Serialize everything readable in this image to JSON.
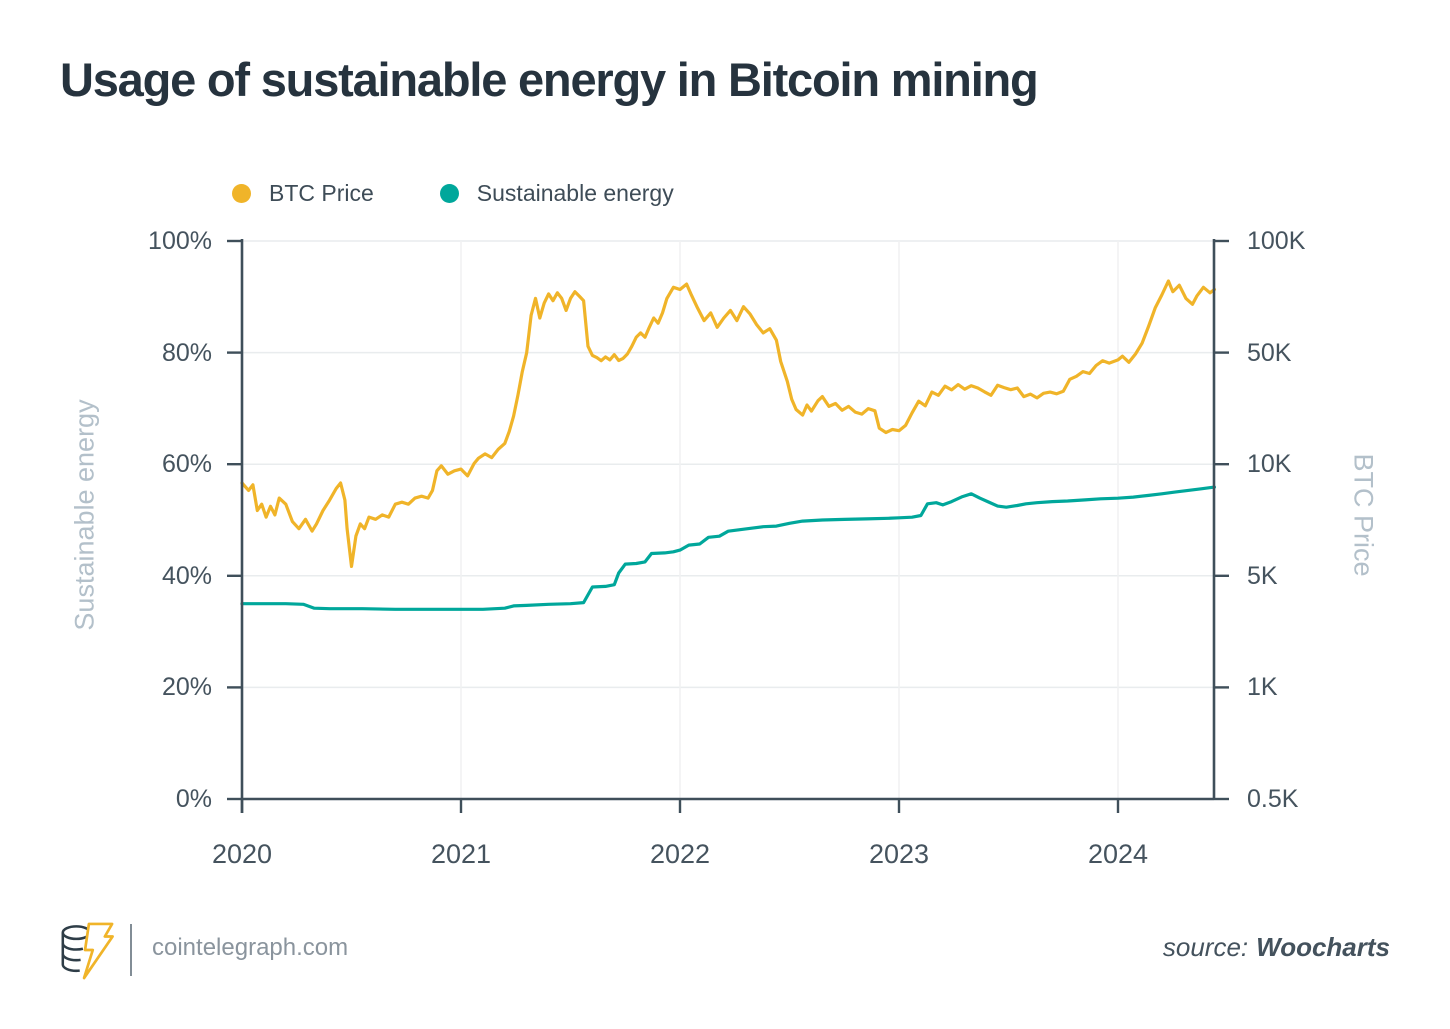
{
  "page": {
    "title": "Usage of sustainable energy in Bitcoin mining"
  },
  "legend": {
    "items": [
      {
        "label": "BTC Price",
        "color": "#F0B429"
      },
      {
        "label": "Sustainable energy",
        "color": "#00A79B"
      }
    ]
  },
  "chart_data": {
    "type": "line",
    "title": "Usage of sustainable energy in Bitcoin mining",
    "legend_position": "top",
    "grid": true,
    "x_axis": {
      "tick_labels": [
        "2020",
        "2021",
        "2022",
        "2023",
        "2024"
      ],
      "tick_years": [
        2020,
        2021,
        2022,
        2023,
        2024
      ],
      "range": [
        2020,
        2024.44
      ]
    },
    "left_y_axis": {
      "label": "Sustainable energy",
      "unit": "%",
      "tick_labels": [
        "0%",
        "20%",
        "40%",
        "60%",
        "80%",
        "100%"
      ],
      "tick_values": [
        0,
        20,
        40,
        60,
        80,
        100
      ],
      "range": [
        0,
        100
      ],
      "scale": "linear"
    },
    "right_y_axis": {
      "label": "BTC Price",
      "unit": "K USD",
      "tick_labels": [
        "0.5K",
        "1K",
        "5K",
        "10K",
        "50K",
        "100K"
      ],
      "tick_values": [
        0.5,
        1,
        5,
        10,
        50,
        100
      ],
      "range": [
        0.5,
        100
      ],
      "scale": "log-segmented"
    },
    "series": [
      {
        "name": "BTC Price",
        "axis": "right",
        "unit": "K USD",
        "color": "#F0B429",
        "points": [
          [
            2020.0,
            8.9
          ],
          [
            2020.03,
            8.5
          ],
          [
            2020.05,
            8.8
          ],
          [
            2020.07,
            7.5
          ],
          [
            2020.09,
            7.8
          ],
          [
            2020.11,
            7.2
          ],
          [
            2020.13,
            7.7
          ],
          [
            2020.15,
            7.3
          ],
          [
            2020.17,
            8.1
          ],
          [
            2020.2,
            7.8
          ],
          [
            2020.23,
            7.0
          ],
          [
            2020.26,
            6.7
          ],
          [
            2020.29,
            7.1
          ],
          [
            2020.32,
            6.6
          ],
          [
            2020.34,
            6.9
          ],
          [
            2020.37,
            7.5
          ],
          [
            2020.4,
            8.0
          ],
          [
            2020.43,
            8.6
          ],
          [
            2020.45,
            8.9
          ],
          [
            2020.47,
            8.0
          ],
          [
            2020.48,
            6.7
          ],
          [
            2020.5,
            5.3
          ],
          [
            2020.52,
            6.4
          ],
          [
            2020.54,
            6.9
          ],
          [
            2020.56,
            6.7
          ],
          [
            2020.58,
            7.2
          ],
          [
            2020.61,
            7.1
          ],
          [
            2020.64,
            7.3
          ],
          [
            2020.67,
            7.2
          ],
          [
            2020.7,
            7.8
          ],
          [
            2020.73,
            7.9
          ],
          [
            2020.76,
            7.8
          ],
          [
            2020.79,
            8.1
          ],
          [
            2020.82,
            8.2
          ],
          [
            2020.85,
            8.1
          ],
          [
            2020.87,
            8.5
          ],
          [
            2020.89,
            9.6
          ],
          [
            2020.91,
            9.9
          ],
          [
            2020.94,
            9.4
          ],
          [
            2020.97,
            9.6
          ],
          [
            2021.0,
            9.7
          ],
          [
            2021.03,
            9.3
          ],
          [
            2021.06,
            10.1
          ],
          [
            2021.08,
            10.9
          ],
          [
            2021.11,
            11.6
          ],
          [
            2021.14,
            11.0
          ],
          [
            2021.17,
            12.4
          ],
          [
            2021.2,
            13.5
          ],
          [
            2021.22,
            16.0
          ],
          [
            2021.24,
            20.0
          ],
          [
            2021.26,
            27.0
          ],
          [
            2021.28,
            38.0
          ],
          [
            2021.3,
            50.0
          ],
          [
            2021.32,
            63.0
          ],
          [
            2021.34,
            70.0
          ],
          [
            2021.36,
            62.0
          ],
          [
            2021.38,
            68.0
          ],
          [
            2021.4,
            72.0
          ],
          [
            2021.42,
            69.0
          ],
          [
            2021.44,
            72.5
          ],
          [
            2021.46,
            70.0
          ],
          [
            2021.48,
            65.0
          ],
          [
            2021.5,
            70.0
          ],
          [
            2021.52,
            73.0
          ],
          [
            2021.54,
            71.0
          ],
          [
            2021.56,
            69.0
          ],
          [
            2021.58,
            52.0
          ],
          [
            2021.6,
            48.0
          ],
          [
            2021.62,
            46.5
          ],
          [
            2021.64,
            44.5
          ],
          [
            2021.66,
            47.0
          ],
          [
            2021.68,
            45.0
          ],
          [
            2021.7,
            48.5
          ],
          [
            2021.72,
            44.6
          ],
          [
            2021.74,
            46.0
          ],
          [
            2021.76,
            49.0
          ],
          [
            2021.78,
            52.0
          ],
          [
            2021.8,
            55.0
          ],
          [
            2021.82,
            56.5
          ],
          [
            2021.84,
            55.0
          ],
          [
            2021.86,
            58.5
          ],
          [
            2021.88,
            62.0
          ],
          [
            2021.9,
            60.0
          ],
          [
            2021.92,
            64.0
          ],
          [
            2021.94,
            70.0
          ],
          [
            2021.97,
            75.0
          ],
          [
            2022.0,
            74.0
          ],
          [
            2022.03,
            76.5
          ],
          [
            2022.05,
            72.0
          ],
          [
            2022.08,
            66.0
          ],
          [
            2022.11,
            61.0
          ],
          [
            2022.14,
            64.0
          ],
          [
            2022.17,
            58.5
          ],
          [
            2022.2,
            62.0
          ],
          [
            2022.23,
            65.0
          ],
          [
            2022.26,
            61.0
          ],
          [
            2022.29,
            66.5
          ],
          [
            2022.32,
            63.5
          ],
          [
            2022.35,
            59.5
          ],
          [
            2022.38,
            56.5
          ],
          [
            2022.41,
            58.0
          ],
          [
            2022.44,
            54.0
          ],
          [
            2022.46,
            44.0
          ],
          [
            2022.49,
            33.0
          ],
          [
            2022.51,
            25.5
          ],
          [
            2022.53,
            22.0
          ],
          [
            2022.56,
            20.3
          ],
          [
            2022.58,
            23.5
          ],
          [
            2022.6,
            21.5
          ],
          [
            2022.63,
            25.0
          ],
          [
            2022.65,
            26.5
          ],
          [
            2022.68,
            23.0
          ],
          [
            2022.71,
            24.0
          ],
          [
            2022.74,
            21.8
          ],
          [
            2022.77,
            23.0
          ],
          [
            2022.8,
            21.2
          ],
          [
            2022.83,
            20.6
          ],
          [
            2022.86,
            22.3
          ],
          [
            2022.89,
            21.6
          ],
          [
            2022.91,
            16.8
          ],
          [
            2022.94,
            15.8
          ],
          [
            2022.97,
            16.5
          ],
          [
            2023.0,
            16.2
          ],
          [
            2023.03,
            17.5
          ],
          [
            2023.06,
            21.0
          ],
          [
            2023.09,
            24.8
          ],
          [
            2023.12,
            23.2
          ],
          [
            2023.15,
            28.3
          ],
          [
            2023.18,
            27.0
          ],
          [
            2023.21,
            30.8
          ],
          [
            2023.24,
            29.2
          ],
          [
            2023.27,
            31.5
          ],
          [
            2023.3,
            29.5
          ],
          [
            2023.33,
            31.0
          ],
          [
            2023.36,
            30.0
          ],
          [
            2023.39,
            28.4
          ],
          [
            2023.42,
            27.0
          ],
          [
            2023.45,
            31.2
          ],
          [
            2023.48,
            30.2
          ],
          [
            2023.51,
            29.3
          ],
          [
            2023.54,
            30.0
          ],
          [
            2023.57,
            26.5
          ],
          [
            2023.6,
            27.5
          ],
          [
            2023.63,
            26.0
          ],
          [
            2023.66,
            27.8
          ],
          [
            2023.69,
            28.3
          ],
          [
            2023.72,
            27.6
          ],
          [
            2023.75,
            28.6
          ],
          [
            2023.78,
            34.0
          ],
          [
            2023.81,
            35.5
          ],
          [
            2023.84,
            38.0
          ],
          [
            2023.87,
            37.0
          ],
          [
            2023.9,
            41.5
          ],
          [
            2023.93,
            44.5
          ],
          [
            2023.96,
            43.0
          ],
          [
            2024.0,
            45.0
          ],
          [
            2024.02,
            47.5
          ],
          [
            2024.05,
            43.5
          ],
          [
            2024.08,
            49.0
          ],
          [
            2024.11,
            53.0
          ],
          [
            2024.14,
            59.0
          ],
          [
            2024.17,
            66.0
          ],
          [
            2024.2,
            71.5
          ],
          [
            2024.23,
            78.0
          ],
          [
            2024.25,
            73.0
          ],
          [
            2024.28,
            76.0
          ],
          [
            2024.31,
            70.0
          ],
          [
            2024.34,
            67.5
          ],
          [
            2024.36,
            71.0
          ],
          [
            2024.39,
            75.0
          ],
          [
            2024.42,
            72.5
          ],
          [
            2024.44,
            74.0
          ]
        ]
      },
      {
        "name": "Sustainable energy",
        "axis": "left",
        "unit": "%",
        "color": "#00A79B",
        "points": [
          [
            2020.0,
            35.0
          ],
          [
            2020.1,
            35.0
          ],
          [
            2020.2,
            35.0
          ],
          [
            2020.28,
            34.9
          ],
          [
            2020.33,
            34.2
          ],
          [
            2020.4,
            34.1
          ],
          [
            2020.55,
            34.1
          ],
          [
            2020.7,
            34.0
          ],
          [
            2020.85,
            34.0
          ],
          [
            2021.0,
            34.0
          ],
          [
            2021.1,
            34.0
          ],
          [
            2021.2,
            34.2
          ],
          [
            2021.24,
            34.6
          ],
          [
            2021.3,
            34.7
          ],
          [
            2021.4,
            34.9
          ],
          [
            2021.5,
            35.0
          ],
          [
            2021.56,
            35.2
          ],
          [
            2021.6,
            38.0
          ],
          [
            2021.66,
            38.1
          ],
          [
            2021.7,
            38.4
          ],
          [
            2021.72,
            40.5
          ],
          [
            2021.75,
            42.1
          ],
          [
            2021.8,
            42.2
          ],
          [
            2021.84,
            42.5
          ],
          [
            2021.87,
            44.0
          ],
          [
            2021.93,
            44.1
          ],
          [
            2021.97,
            44.3
          ],
          [
            2022.0,
            44.6
          ],
          [
            2022.04,
            45.5
          ],
          [
            2022.09,
            45.7
          ],
          [
            2022.13,
            46.9
          ],
          [
            2022.18,
            47.1
          ],
          [
            2022.22,
            48.0
          ],
          [
            2022.3,
            48.4
          ],
          [
            2022.38,
            48.8
          ],
          [
            2022.44,
            48.9
          ],
          [
            2022.5,
            49.4
          ],
          [
            2022.56,
            49.8
          ],
          [
            2022.65,
            50.0
          ],
          [
            2022.75,
            50.1
          ],
          [
            2022.85,
            50.2
          ],
          [
            2022.95,
            50.3
          ],
          [
            2023.0,
            50.4
          ],
          [
            2023.06,
            50.5
          ],
          [
            2023.1,
            50.8
          ],
          [
            2023.13,
            52.9
          ],
          [
            2023.17,
            53.1
          ],
          [
            2023.2,
            52.7
          ],
          [
            2023.24,
            53.3
          ],
          [
            2023.29,
            54.2
          ],
          [
            2023.33,
            54.7
          ],
          [
            2023.37,
            53.9
          ],
          [
            2023.41,
            53.2
          ],
          [
            2023.45,
            52.5
          ],
          [
            2023.49,
            52.3
          ],
          [
            2023.54,
            52.6
          ],
          [
            2023.58,
            52.9
          ],
          [
            2023.63,
            53.1
          ],
          [
            2023.7,
            53.3
          ],
          [
            2023.77,
            53.4
          ],
          [
            2023.85,
            53.6
          ],
          [
            2023.92,
            53.8
          ],
          [
            2024.0,
            53.9
          ],
          [
            2024.07,
            54.1
          ],
          [
            2024.14,
            54.4
          ],
          [
            2024.2,
            54.7
          ],
          [
            2024.26,
            55.0
          ],
          [
            2024.32,
            55.3
          ],
          [
            2024.38,
            55.6
          ],
          [
            2024.44,
            55.9
          ]
        ]
      }
    ]
  },
  "footer": {
    "brand": "cointelegraph.com",
    "source_prefix": "source:",
    "source_name": "Woocharts"
  },
  "colors": {
    "background": "#ffffff",
    "title_text": "#26333e",
    "axis_text": "#45535e",
    "axis_line": "#3f4f5a",
    "axis_title_text": "#b3c0ca",
    "grid_line_horizontal": "#e9ecee",
    "grid_line_vertical": "#f0f1f2",
    "btc_line": "#F0B429",
    "energy_line": "#00A79B",
    "footer_text": "#8a949d",
    "source_text": "#44525d"
  }
}
